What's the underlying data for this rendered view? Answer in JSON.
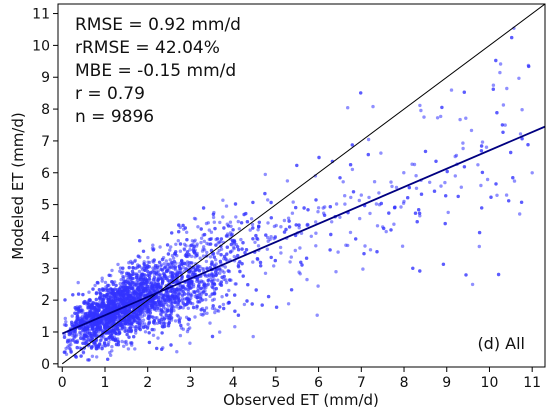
{
  "chart_data": {
    "type": "scatter",
    "xlabel": "Observed ET (mm/d)",
    "ylabel": "Modeled ET (mm/d)",
    "xlim": [
      -0.1,
      11.3
    ],
    "ylim": [
      -0.1,
      11.3
    ],
    "xticks": [
      0,
      1,
      2,
      3,
      4,
      5,
      6,
      7,
      8,
      9,
      10,
      11
    ],
    "yticks": [
      0,
      1,
      2,
      3,
      4,
      5,
      6,
      7,
      8,
      9,
      10,
      11
    ],
    "grid": false,
    "annotations": [
      "RMSE = 0.92 mm/d",
      "rRMSE = 42.04%",
      "MBE = -0.15 mm/d",
      "r = 0.79",
      "n = 9896"
    ],
    "panel_label": "(d) All",
    "point_count": 9896,
    "point_color": "#3333ff",
    "one_to_one_line": {
      "x": [
        0,
        11.3
      ],
      "y": [
        0,
        11.3
      ],
      "color": "#000000"
    },
    "regression_line": {
      "x": [
        0,
        11.3
      ],
      "y": [
        0.95,
        7.45
      ],
      "color": "#000080"
    },
    "samples": [
      {
        "x": 0.1,
        "y": 0.3
      },
      {
        "x": 0.2,
        "y": 0.6
      },
      {
        "x": 0.3,
        "y": 1.0
      },
      {
        "x": 0.5,
        "y": 1.2
      },
      {
        "x": 0.7,
        "y": 0.8
      },
      {
        "x": 1.0,
        "y": 1.5
      },
      {
        "x": 1.2,
        "y": 2.1
      },
      {
        "x": 1.5,
        "y": 1.6
      },
      {
        "x": 1.8,
        "y": 2.4
      },
      {
        "x": 2.0,
        "y": 2.9
      },
      {
        "x": 2.3,
        "y": 2.2
      },
      {
        "x": 2.6,
        "y": 3.1
      },
      {
        "x": 3.0,
        "y": 2.7
      },
      {
        "x": 3.3,
        "y": 3.6
      },
      {
        "x": 3.6,
        "y": 3.0
      },
      {
        "x": 4.0,
        "y": 3.8
      },
      {
        "x": 4.4,
        "y": 4.2
      },
      {
        "x": 4.8,
        "y": 3.6
      },
      {
        "x": 5.2,
        "y": 4.5
      },
      {
        "x": 5.6,
        "y": 4.1
      },
      {
        "x": 6.0,
        "y": 4.9
      },
      {
        "x": 6.5,
        "y": 4.6
      },
      {
        "x": 7.0,
        "y": 5.3
      },
      {
        "x": 7.5,
        "y": 4.3
      },
      {
        "x": 8.0,
        "y": 5.1
      },
      {
        "x": 8.6,
        "y": 5.7
      },
      {
        "x": 9.2,
        "y": 5.9
      },
      {
        "x": 9.8,
        "y": 5.6
      },
      {
        "x": 10.4,
        "y": 5.3
      },
      {
        "x": 11.0,
        "y": 6.0
      }
    ]
  }
}
